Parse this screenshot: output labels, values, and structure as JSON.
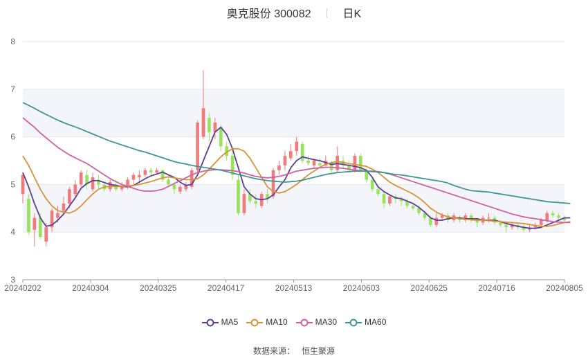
{
  "title": {
    "stock_name": "奥克股份",
    "stock_code": "300082",
    "period": "日K"
  },
  "source": {
    "label": "数据来源：",
    "name": "恒生聚源"
  },
  "colors": {
    "up": "#f07b7b",
    "down": "#98e35c",
    "ma5": "#5b3e97",
    "ma10": "#d99236",
    "ma30": "#d060a6",
    "ma60": "#3f9595",
    "band": "#f4f5fb",
    "grid": "#e6e6e6"
  },
  "chart_data": {
    "type": "candlestick",
    "ylim": [
      3,
      8
    ],
    "yticks": [
      3,
      4,
      5,
      6,
      7,
      8
    ],
    "xticks": [
      "20240202",
      "20240304",
      "20240325",
      "20240417",
      "20240513",
      "20240603",
      "20240625",
      "20240716",
      "20240805"
    ],
    "legend": [
      "MA5",
      "MA10",
      "MA30",
      "MA60"
    ],
    "legend_position": "bottom",
    "candles": [
      [
        4.8,
        5.2,
        5.25,
        4.6
      ],
      [
        4.7,
        4.0,
        4.8,
        3.95
      ],
      [
        4.05,
        4.3,
        4.4,
        3.7
      ],
      [
        4.3,
        3.9,
        4.4,
        3.85
      ],
      [
        3.8,
        4.1,
        4.2,
        3.7
      ],
      [
        4.1,
        4.45,
        4.5,
        4.0
      ],
      [
        4.3,
        4.4,
        4.55,
        4.2
      ],
      [
        4.45,
        4.6,
        4.75,
        4.35
      ],
      [
        4.6,
        4.9,
        4.95,
        4.5
      ],
      [
        4.8,
        5.0,
        5.1,
        4.75
      ],
      [
        5.0,
        5.25,
        5.3,
        4.95
      ],
      [
        5.2,
        5.0,
        5.3,
        4.9
      ],
      [
        4.9,
        5.15,
        5.25,
        4.85
      ],
      [
        5.1,
        5.0,
        5.2,
        4.9
      ],
      [
        5.0,
        4.9,
        5.05,
        4.85
      ],
      [
        4.9,
        5.05,
        5.1,
        4.85
      ],
      [
        5.0,
        4.9,
        5.1,
        4.85
      ],
      [
        4.9,
        4.95,
        5.05,
        4.85
      ],
      [
        4.95,
        5.1,
        5.15,
        4.9
      ],
      [
        5.1,
        5.2,
        5.25,
        5.0
      ],
      [
        5.15,
        5.2,
        5.3,
        5.05
      ],
      [
        5.2,
        5.3,
        5.35,
        5.15
      ],
      [
        5.3,
        5.25,
        5.35,
        5.2
      ],
      [
        5.25,
        5.3,
        5.35,
        5.2
      ],
      [
        5.3,
        5.1,
        5.3,
        5.05
      ],
      [
        5.1,
        5.0,
        5.15,
        4.95
      ],
      [
        5.0,
        4.9,
        5.05,
        4.8
      ],
      [
        4.85,
        4.95,
        5.0,
        4.8
      ],
      [
        4.9,
        5.0,
        5.05,
        4.85
      ],
      [
        4.95,
        5.3,
        5.35,
        4.9
      ],
      [
        5.3,
        6.3,
        6.35,
        5.25
      ],
      [
        6.0,
        6.6,
        7.4,
        5.95
      ],
      [
        6.4,
        6.1,
        6.5,
        5.9
      ],
      [
        6.1,
        6.3,
        6.4,
        5.95
      ],
      [
        6.2,
        5.8,
        6.25,
        5.7
      ],
      [
        5.8,
        5.6,
        5.9,
        5.5
      ],
      [
        5.6,
        5.2,
        5.7,
        5.1
      ],
      [
        5.1,
        4.4,
        5.2,
        4.35
      ],
      [
        4.4,
        4.8,
        4.9,
        4.35
      ],
      [
        4.8,
        4.65,
        4.9,
        4.6
      ],
      [
        4.65,
        4.6,
        4.8,
        4.5
      ],
      [
        4.55,
        4.8,
        4.85,
        4.5
      ],
      [
        4.8,
        4.7,
        4.9,
        4.6
      ],
      [
        4.75,
        5.3,
        5.35,
        4.7
      ],
      [
        5.3,
        5.4,
        5.5,
        5.2
      ],
      [
        5.4,
        5.6,
        5.7,
        5.3
      ],
      [
        5.55,
        5.7,
        5.85,
        5.5
      ],
      [
        5.7,
        5.9,
        6.0,
        5.6
      ],
      [
        5.85,
        5.5,
        5.9,
        5.45
      ],
      [
        5.5,
        5.45,
        5.6,
        5.4
      ],
      [
        5.4,
        5.5,
        5.55,
        5.35
      ],
      [
        5.45,
        5.4,
        5.55,
        5.35
      ],
      [
        5.4,
        5.5,
        5.6,
        5.35
      ],
      [
        5.45,
        5.3,
        5.5,
        5.25
      ],
      [
        5.3,
        5.6,
        5.8,
        5.25
      ],
      [
        5.5,
        5.4,
        5.6,
        5.35
      ],
      [
        5.4,
        5.3,
        5.5,
        5.25
      ],
      [
        5.3,
        5.6,
        5.65,
        5.25
      ],
      [
        5.6,
        5.3,
        5.65,
        5.25
      ],
      [
        5.3,
        5.1,
        5.35,
        5.05
      ],
      [
        5.1,
        4.9,
        5.15,
        4.85
      ],
      [
        4.9,
        4.8,
        4.95,
        4.75
      ],
      [
        4.8,
        4.6,
        4.85,
        4.5
      ],
      [
        4.6,
        4.75,
        4.8,
        4.55
      ],
      [
        4.75,
        4.7,
        4.8,
        4.6
      ],
      [
        4.7,
        4.65,
        4.75,
        4.55
      ],
      [
        4.65,
        4.55,
        4.7,
        4.5
      ],
      [
        4.55,
        4.5,
        4.6,
        4.45
      ],
      [
        4.5,
        4.4,
        4.55,
        4.35
      ],
      [
        4.4,
        4.3,
        4.45,
        4.25
      ],
      [
        4.3,
        4.15,
        4.35,
        4.1
      ],
      [
        4.15,
        4.3,
        4.4,
        4.1
      ],
      [
        4.3,
        4.35,
        4.4,
        4.25
      ],
      [
        4.35,
        4.25,
        4.4,
        4.2
      ],
      [
        4.25,
        4.35,
        4.4,
        4.2
      ],
      [
        4.3,
        4.25,
        4.35,
        4.2
      ],
      [
        4.25,
        4.35,
        4.4,
        4.2
      ],
      [
        4.35,
        4.25,
        4.4,
        4.2
      ],
      [
        4.25,
        4.2,
        4.3,
        4.1
      ],
      [
        4.2,
        4.3,
        4.35,
        4.15
      ],
      [
        4.3,
        4.3,
        4.4,
        4.2
      ],
      [
        4.3,
        4.2,
        4.35,
        4.15
      ],
      [
        4.2,
        4.15,
        4.25,
        4.1
      ],
      [
        4.15,
        4.1,
        4.2,
        4.0
      ],
      [
        4.1,
        4.15,
        4.2,
        4.05
      ],
      [
        4.15,
        4.1,
        4.2,
        4.05
      ],
      [
        4.1,
        4.05,
        4.15,
        4.0
      ],
      [
        4.05,
        4.1,
        4.15,
        4.0
      ],
      [
        4.1,
        4.15,
        4.2,
        4.05
      ],
      [
        4.15,
        4.25,
        4.3,
        4.1
      ],
      [
        4.25,
        4.4,
        4.45,
        4.2
      ],
      [
        4.4,
        4.35,
        4.45,
        4.3
      ],
      [
        4.35,
        4.3,
        4.4,
        4.25
      ],
      [
        4.3,
        4.25,
        4.35,
        4.2
      ]
    ],
    "series": [
      {
        "name": "MA5",
        "values": [
          5.25,
          4.95,
          4.6,
          4.3,
          4.12,
          4.15,
          4.25,
          4.38,
          4.55,
          4.72,
          4.92,
          5.02,
          5.08,
          5.08,
          5.04,
          5.0,
          4.98,
          4.96,
          4.95,
          4.98,
          5.05,
          5.12,
          5.18,
          5.22,
          5.26,
          5.2,
          5.15,
          5.05,
          4.98,
          5.0,
          5.2,
          5.5,
          5.8,
          6.1,
          6.2,
          6.05,
          5.75,
          5.35,
          4.95,
          4.8,
          4.7,
          4.68,
          4.7,
          4.78,
          4.95,
          5.1,
          5.35,
          5.5,
          5.58,
          5.55,
          5.52,
          5.5,
          5.46,
          5.42,
          5.44,
          5.42,
          5.4,
          5.38,
          5.35,
          5.3,
          5.15,
          4.95,
          4.85,
          4.78,
          4.72,
          4.7,
          4.65,
          4.6,
          4.52,
          4.42,
          4.3,
          4.25,
          4.25,
          4.28,
          4.3,
          4.3,
          4.28,
          4.28,
          4.28,
          4.25,
          4.25,
          4.25,
          4.22,
          4.18,
          4.15,
          4.12,
          4.1,
          4.08,
          4.08,
          4.1,
          4.15,
          4.2,
          4.25,
          4.3,
          4.3
        ]
      },
      {
        "name": "MA10",
        "values": [
          5.6,
          5.4,
          5.15,
          4.9,
          4.7,
          4.55,
          4.45,
          4.42,
          4.4,
          4.45,
          4.55,
          4.68,
          4.8,
          4.9,
          4.95,
          4.96,
          4.96,
          4.96,
          4.97,
          4.98,
          5.0,
          5.03,
          5.06,
          5.1,
          5.14,
          5.16,
          5.14,
          5.12,
          5.1,
          5.1,
          5.12,
          5.2,
          5.32,
          5.45,
          5.58,
          5.68,
          5.75,
          5.75,
          5.7,
          5.55,
          5.35,
          5.15,
          4.95,
          4.85,
          4.82,
          4.85,
          4.92,
          5.0,
          5.1,
          5.2,
          5.28,
          5.36,
          5.42,
          5.46,
          5.48,
          5.46,
          5.44,
          5.42,
          5.4,
          5.38,
          5.32,
          5.25,
          5.15,
          5.05,
          4.98,
          4.92,
          4.86,
          4.8,
          4.72,
          4.62,
          4.5,
          4.42,
          4.36,
          4.32,
          4.3,
          4.28,
          4.27,
          4.26,
          4.25,
          4.25,
          4.24,
          4.23,
          4.22,
          4.21,
          4.2,
          4.19,
          4.18,
          4.16,
          4.14,
          4.12,
          4.12,
          4.14,
          4.17,
          4.2,
          4.22
        ]
      },
      {
        "name": "MA30",
        "values": [
          6.4,
          6.3,
          6.2,
          6.08,
          5.98,
          5.88,
          5.78,
          5.7,
          5.62,
          5.56,
          5.5,
          5.44,
          5.36,
          5.28,
          5.2,
          5.12,
          5.06,
          5.0,
          4.96,
          4.92,
          4.88,
          4.86,
          4.86,
          4.87,
          4.9,
          4.96,
          5.02,
          5.08,
          5.14,
          5.2,
          5.25,
          5.28,
          5.3,
          5.31,
          5.31,
          5.3,
          5.29,
          5.27,
          5.24,
          5.2,
          5.17,
          5.15,
          5.14,
          5.15,
          5.17,
          5.2,
          5.24,
          5.28,
          5.3,
          5.32,
          5.34,
          5.35,
          5.36,
          5.36,
          5.35,
          5.34,
          5.32,
          5.3,
          5.29,
          5.28,
          5.28,
          5.27,
          5.25,
          5.22,
          5.18,
          5.14,
          5.1,
          5.06,
          5.02,
          4.98,
          4.94,
          4.9,
          4.86,
          4.82,
          4.78,
          4.74,
          4.7,
          4.66,
          4.62,
          4.58,
          4.54,
          4.5,
          4.46,
          4.42,
          4.38,
          4.35,
          4.32,
          4.3,
          4.28,
          4.26,
          4.24,
          4.22,
          4.21,
          4.2,
          4.2
        ]
      },
      {
        "name": "MA60",
        "values": [
          6.72,
          6.66,
          6.6,
          6.53,
          6.47,
          6.41,
          6.35,
          6.3,
          6.25,
          6.21,
          6.16,
          6.11,
          6.06,
          6.01,
          5.96,
          5.91,
          5.87,
          5.83,
          5.79,
          5.75,
          5.71,
          5.68,
          5.64,
          5.6,
          5.56,
          5.52,
          5.48,
          5.45,
          5.43,
          5.4,
          5.38,
          5.36,
          5.34,
          5.32,
          5.3,
          5.27,
          5.24,
          5.21,
          5.18,
          5.15,
          5.12,
          5.1,
          5.08,
          5.07,
          5.06,
          5.05,
          5.06,
          5.07,
          5.09,
          5.12,
          5.15,
          5.18,
          5.21,
          5.23,
          5.25,
          5.26,
          5.27,
          5.28,
          5.28,
          5.28,
          5.27,
          5.26,
          5.25,
          5.23,
          5.21,
          5.2,
          5.18,
          5.16,
          5.14,
          5.12,
          5.1,
          5.08,
          5.06,
          5.03,
          4.98,
          4.94,
          4.9,
          4.87,
          4.86,
          4.85,
          4.84,
          4.82,
          4.8,
          4.78,
          4.76,
          4.74,
          4.72,
          4.7,
          4.68,
          4.66,
          4.64,
          4.63,
          4.62,
          4.61,
          4.6
        ]
      }
    ]
  }
}
